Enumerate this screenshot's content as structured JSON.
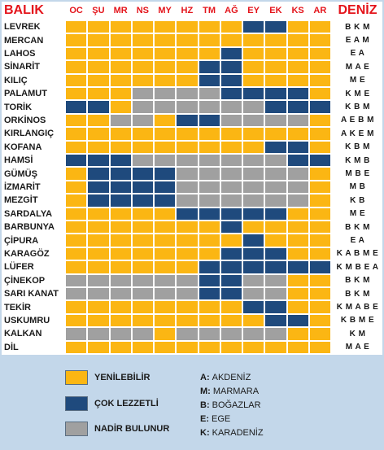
{
  "chart_data": {
    "type": "table",
    "header_fish": "BALIK",
    "header_sea": "DENİZ",
    "months": [
      "OC",
      "ŞU",
      "MR",
      "NS",
      "MY",
      "HZ",
      "TM",
      "AĞ",
      "EY",
      "EK",
      "KS",
      "AR"
    ],
    "fish": [
      {
        "name": "LEVREK",
        "sea": "B K M",
        "months": "YYYYYYYYDDYY"
      },
      {
        "name": "MERCAN",
        "sea": "E A M",
        "months": "YYYYYYYYYYYY"
      },
      {
        "name": "LAHOS",
        "sea": "E A",
        "months": "YYYYYYYDYYYY"
      },
      {
        "name": "SİNARİT",
        "sea": "M A E",
        "months": "YYYYYYDDYYYY"
      },
      {
        "name": "KILIÇ",
        "sea": "M E",
        "months": "YYYYYYDDYYYY"
      },
      {
        "name": "PALAMUT",
        "sea": "K M E",
        "months": "YYYGGGGDDDDY"
      },
      {
        "name": "TORİK",
        "sea": "K B M",
        "months": "DDYGGGGGGDDD"
      },
      {
        "name": "ORKİNOS",
        "sea": "A E B M",
        "months": "YYGGYDDGGGGY"
      },
      {
        "name": "KIRLANGIÇ",
        "sea": "A K E M",
        "months": "YYYYYYYYYYYY"
      },
      {
        "name": "KOFANA",
        "sea": "K B M",
        "months": "YYYYYYYYYDDY"
      },
      {
        "name": "HAMSİ",
        "sea": "K M B",
        "months": "DDDGGGGGGGDD"
      },
      {
        "name": "GÜMÜŞ",
        "sea": "M B E",
        "months": "YDDDDGGGGGGY"
      },
      {
        "name": "İZMARİT",
        "sea": "M B",
        "months": "YDDDDGGGGGGY"
      },
      {
        "name": "MEZGİT",
        "sea": "K B",
        "months": "YDDDDGGGGGGY"
      },
      {
        "name": "SARDALYA",
        "sea": "M E",
        "months": "YYYYYDDDDDYY"
      },
      {
        "name": "BARBUNYA",
        "sea": "B K M",
        "months": "YYYYYYYDYYYY"
      },
      {
        "name": "ÇİPURA",
        "sea": "E A",
        "months": "YYYYYYYYDYYY"
      },
      {
        "name": "KARAGÖZ",
        "sea": "K A B M E",
        "months": "YYYYYYYDDDYY"
      },
      {
        "name": "LÜFER",
        "sea": "K M B E A",
        "months": "YYYYYYDDDDDD"
      },
      {
        "name": "ÇİNEKOP",
        "sea": "B K M",
        "months": "GGGGGGDDGGYY"
      },
      {
        "name": "SARI KANAT",
        "sea": "B K M",
        "months": "GGGGGGDDGGYY"
      },
      {
        "name": "TEKİR",
        "sea": "K M A B E",
        "months": "YYYYYYYYDDYY"
      },
      {
        "name": "USKUMRU",
        "sea": "K B M E",
        "months": "YYYYYYYYYDDY"
      },
      {
        "name": "KALKAN",
        "sea": "K M",
        "months": "GGGGYGGGGGYY"
      },
      {
        "name": "DİL",
        "sea": "M A E",
        "months": "YYYYYYYYYYYY"
      }
    ],
    "legend": [
      {
        "code": "Y",
        "label": "YENİLEBİLİR",
        "color": "#fbb613"
      },
      {
        "code": "D",
        "label": "ÇOK LEZZETLİ",
        "color": "#1f4a7d"
      },
      {
        "code": "G",
        "label": "NADİR BULUNUR",
        "color": "#a0a0a0"
      }
    ],
    "sea_codes": [
      {
        "letter": "A:",
        "name": "AKDENİZ"
      },
      {
        "letter": "M:",
        "name": "MARMARA"
      },
      {
        "letter": "B:",
        "name": "BOĞAZLAR"
      },
      {
        "letter": "E:",
        "name": "EGE"
      },
      {
        "letter": "K:",
        "name": "KARADENİZ"
      }
    ],
    "colors": {
      "header_text": "#e4141b",
      "grid_line": "#ffffff",
      "background": "#c3d7ea"
    }
  }
}
